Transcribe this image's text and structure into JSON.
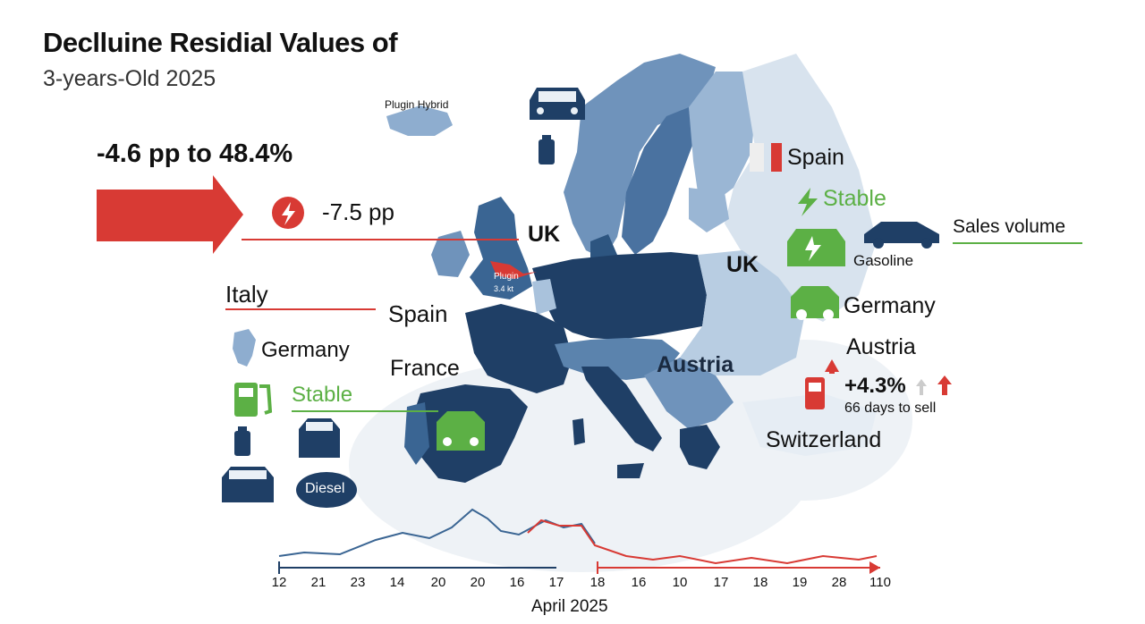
{
  "title": "Declluine Residial Values of",
  "subtitle": "3-years-Old 2025",
  "headline_change": "-4.6 pp to 48.4%",
  "ev_change": "-7.5 pp",
  "labels": {
    "plugin_hybrid": "Plugin Hybrid",
    "uk_center": "UK",
    "plugin_small": "Plugin",
    "plugin_small2": "3.4 kt",
    "italy": "Italy",
    "spain_center": "Spain",
    "germany_left": "Germany",
    "france": "France",
    "stable_left": "Stable",
    "diesel": "Diesel",
    "austria_center": "Austria",
    "spain_right": "Spain",
    "stable_right": "Stable",
    "sales_volume": "Sales volume",
    "gasoline": "Gasoline",
    "uk_right": "UK",
    "germany_right": "Germany",
    "austria_right": "Austria",
    "pct_change": "+4.3%",
    "days_to_sell": "66 days to sell",
    "switzerland": "Switzerland"
  },
  "timeline": {
    "ticks_blue": [
      "12",
      "21",
      "23",
      "14",
      "20",
      "20",
      "16",
      "17"
    ],
    "ticks_red": [
      "18",
      "16",
      "10",
      "17",
      "18",
      "19",
      "28",
      "110"
    ],
    "month_label": "April 2025"
  },
  "colors": {
    "dark_blue": "#1f3f66",
    "mid_blue": "#5b83ad",
    "light_blue": "#a9c2dc",
    "pale_blue": "#d8e3ee",
    "red": "#d83a34",
    "green": "#5cb045"
  },
  "icons": [
    "car-icon",
    "fuel-pump-icon",
    "lightning-icon",
    "ev-charger-icon",
    "flag-icon",
    "arrow-up-icon"
  ]
}
